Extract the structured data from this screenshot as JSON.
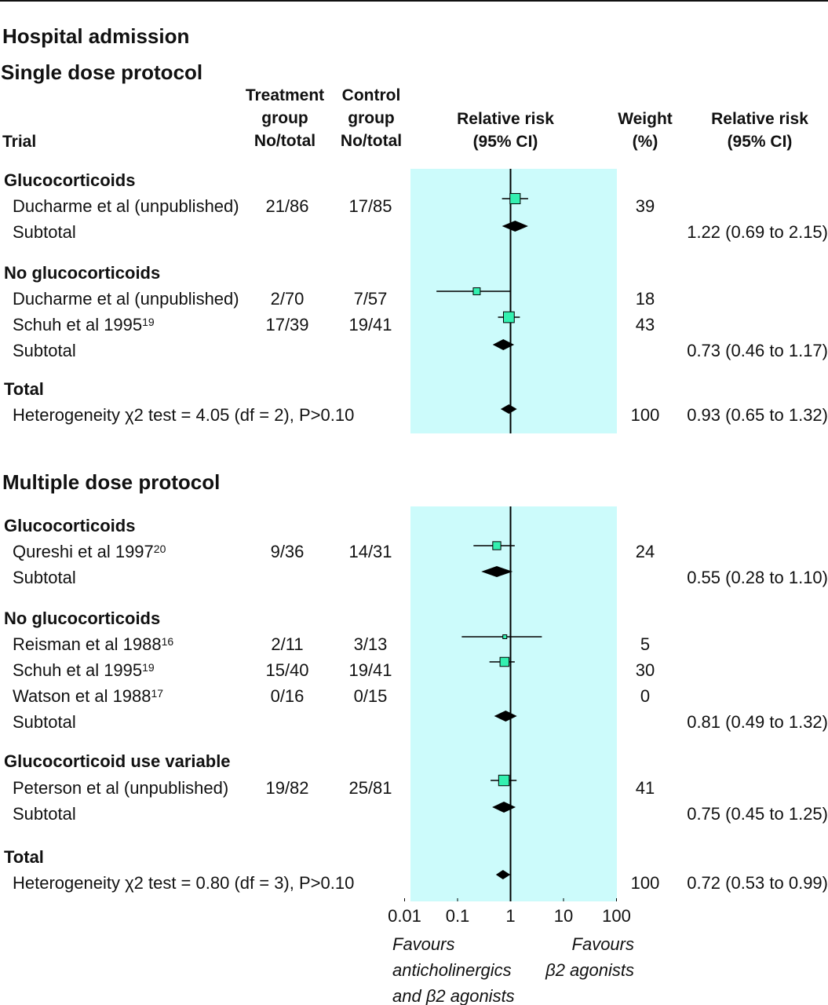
{
  "title": "Hospital admission",
  "protocols": [
    {
      "title": "Single dose protocol"
    },
    {
      "title": "Multiple dose protocol"
    }
  ],
  "headers": {
    "trial": "Trial",
    "treatment": [
      "Treatment",
      "group",
      "No/total"
    ],
    "control": [
      "Control",
      "group",
      "No/total"
    ],
    "rr": [
      "Relative risk",
      "(95% CI)"
    ],
    "weight": [
      "Weight",
      "(%)"
    ],
    "rr_text": [
      "Relative risk",
      "(95% CI)"
    ]
  },
  "axis": {
    "scale": "log",
    "ticks": [
      "0.01",
      "0.1",
      "1",
      "10",
      "100"
    ],
    "favours_left": [
      "Favours",
      "anticholinergics",
      "and β2 agonists"
    ],
    "favours_right": [
      "Favours",
      "β2 agonists"
    ]
  },
  "colors": {
    "panel": "#ccfbfb",
    "box": "#33f0b0",
    "diamond": "#000000"
  },
  "rows": [
    {
      "type": "group",
      "label": "Glucocorticoids"
    },
    {
      "type": "study",
      "label": "Ducharme et al (unpublished)",
      "treat": "21/86",
      "ctrl": "17/85",
      "weight": "39"
    },
    {
      "type": "subtotal",
      "label": "Subtotal",
      "ci_text": "1.22 (0.69 to 2.15)"
    },
    {
      "type": "group",
      "label": "No glucocorticoids"
    },
    {
      "type": "study",
      "label": "Ducharme et al (unpublished)",
      "treat": "2/70",
      "ctrl": "7/57",
      "weight": "18"
    },
    {
      "type": "study",
      "label": "Schuh et al 1995",
      "ref": "19",
      "treat": "17/39",
      "ctrl": "19/41",
      "weight": "43"
    },
    {
      "type": "subtotal",
      "label": "Subtotal",
      "ci_text": "0.73 (0.46 to 1.17)"
    },
    {
      "type": "group",
      "label": "Total"
    },
    {
      "type": "total",
      "label": "Heterogeneity χ2 test = 4.05 (df = 2), P>0.10",
      "weight": "100",
      "ci_text": "0.93 (0.65 to 1.32)"
    },
    {
      "type": "group",
      "label": "Glucocorticoids"
    },
    {
      "type": "study",
      "label": "Qureshi et al 1997",
      "ref": "20",
      "treat": "9/36",
      "ctrl": "14/31",
      "weight": "24"
    },
    {
      "type": "subtotal",
      "label": "Subtotal",
      "ci_text": "0.55 (0.28 to 1.10)"
    },
    {
      "type": "group",
      "label": "No glucocorticoids"
    },
    {
      "type": "study",
      "label": "Reisman et al 1988",
      "ref": "16",
      "treat": "2/11",
      "ctrl": "3/13",
      "weight": "5"
    },
    {
      "type": "study",
      "label": "Schuh et al 1995",
      "ref": "19",
      "treat": "15/40",
      "ctrl": "19/41",
      "weight": "30"
    },
    {
      "type": "study",
      "label": "Watson et al 1988",
      "ref": "17",
      "treat": "0/16",
      "ctrl": "0/15",
      "weight": "0"
    },
    {
      "type": "subtotal",
      "label": "Subtotal",
      "ci_text": "0.81 (0.49 to 1.32)"
    },
    {
      "type": "group",
      "label": "Glucocorticoid use variable"
    },
    {
      "type": "study",
      "label": "Peterson et al (unpublished)",
      "treat": "19/82",
      "ctrl": "25/81",
      "weight": "41"
    },
    {
      "type": "subtotal",
      "label": "Subtotal",
      "ci_text": "0.75 (0.45 to 1.25)"
    },
    {
      "type": "group",
      "label": "Total"
    },
    {
      "type": "total",
      "label": "Heterogeneity χ2 test = 0.80 (df = 3), P>0.10",
      "weight": "100",
      "ci_text": "0.72 (0.53 to 0.99)"
    }
  ],
  "chart_data": {
    "type": "forest",
    "title": "Hospital admission",
    "xscale": "log",
    "xlim": [
      0.01,
      100
    ],
    "null_line": 1,
    "panels": [
      {
        "name": "Single dose protocol",
        "studies": [
          {
            "name": "Ducharme et al (unpublished)",
            "group": "Glucocorticoids",
            "rr": 1.22,
            "lo": 0.69,
            "hi": 2.15,
            "weight": 39
          },
          {
            "name": "Ducharme et al (unpublished)",
            "group": "No glucocorticoids",
            "rr": 0.23,
            "lo": 0.04,
            "hi": 1.0,
            "weight": 18
          },
          {
            "name": "Schuh et al 1995",
            "group": "No glucocorticoids",
            "rr": 0.93,
            "lo": 0.58,
            "hi": 1.5,
            "weight": 43
          }
        ],
        "subtotals": [
          {
            "group": "Glucocorticoids",
            "rr": 1.22,
            "lo": 0.69,
            "hi": 2.15
          },
          {
            "group": "No glucocorticoids",
            "rr": 0.73,
            "lo": 0.46,
            "hi": 1.17
          }
        ],
        "total": {
          "rr": 0.93,
          "lo": 0.65,
          "hi": 1.32,
          "weight": 100
        }
      },
      {
        "name": "Multiple dose protocol",
        "studies": [
          {
            "name": "Qureshi et al 1997",
            "group": "Glucocorticoids",
            "rr": 0.55,
            "lo": 0.2,
            "hi": 1.2,
            "weight": 24
          },
          {
            "name": "Reisman et al 1988",
            "group": "No glucocorticoids",
            "rr": 0.78,
            "lo": 0.12,
            "hi": 3.9,
            "weight": 5
          },
          {
            "name": "Schuh et al 1995",
            "group": "No glucocorticoids",
            "rr": 0.77,
            "lo": 0.4,
            "hi": 1.2,
            "weight": 30
          },
          {
            "name": "Peterson et al (unpublished)",
            "group": "Glucocorticoid use variable",
            "rr": 0.75,
            "lo": 0.42,
            "hi": 1.3,
            "weight": 41
          }
        ],
        "subtotals": [
          {
            "group": "Glucocorticoids",
            "rr": 0.55,
            "lo": 0.28,
            "hi": 1.1
          },
          {
            "group": "No glucocorticoids",
            "rr": 0.81,
            "lo": 0.49,
            "hi": 1.32
          },
          {
            "group": "Glucocorticoid use variable",
            "rr": 0.75,
            "lo": 0.45,
            "hi": 1.25
          }
        ],
        "total": {
          "rr": 0.72,
          "lo": 0.53,
          "hi": 0.99,
          "weight": 100
        }
      }
    ]
  }
}
